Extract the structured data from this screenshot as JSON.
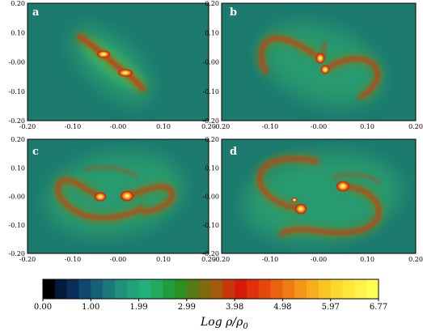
{
  "panels": [
    {
      "label": "a"
    },
    {
      "label": "b"
    },
    {
      "label": "c"
    },
    {
      "label": "d"
    }
  ],
  "axes": {
    "x_ticks": [
      "-0.20",
      "-0.10",
      "-0.00",
      "0.10",
      "0.20"
    ],
    "y_ticks": [
      "0.20",
      "0.10",
      "-0.00",
      "-0.10",
      "-0.20"
    ]
  },
  "colorbar": {
    "tick_labels": [
      "0.00",
      "1.00",
      "1.99",
      "2.99",
      "3.98",
      "4.98",
      "5.97",
      "6.77"
    ],
    "title_main": "Log ρ/ρ",
    "title_sub": "0",
    "colors": [
      "#000000",
      "#041a3c",
      "#0a2e5a",
      "#10476e",
      "#166078",
      "#1c787a",
      "#20907a",
      "#22a27a",
      "#24b07a",
      "#22aa5c",
      "#1f9d3c",
      "#2c8f22",
      "#557a16",
      "#7f6a10",
      "#a65a0e",
      "#c8360c",
      "#d81a0a",
      "#e0300a",
      "#e6480c",
      "#ec620e",
      "#f07c12",
      "#f49616",
      "#f7ae1c",
      "#fac424",
      "#fcd82e",
      "#fee63a",
      "#fff248",
      "#ffff52"
    ]
  },
  "background_color": "#1c7a6e",
  "envelope_color": "#2aa070"
}
